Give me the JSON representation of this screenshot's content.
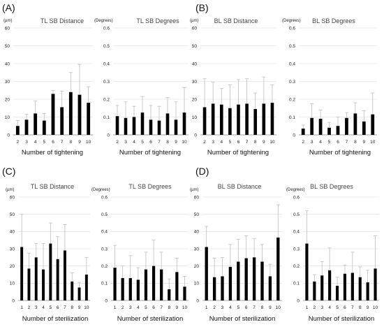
{
  "panel_letters": [
    "(A)",
    "(B)",
    "(C)",
    "(D)"
  ],
  "colors": {
    "bar": "#000000",
    "error_bar": "#bdbdbd",
    "grid": "#d9d9d9",
    "title": "#444444"
  },
  "chart_data": [
    {
      "type": "bar",
      "title": "TL SB Distance",
      "unit": "(µm)",
      "xlabel": "Number of tightening",
      "categories": [
        "2",
        "3",
        "4",
        "5",
        "6",
        "7",
        "8",
        "9",
        "10"
      ],
      "values": [
        5,
        8.5,
        12,
        8,
        23,
        15.5,
        24,
        22.5,
        18
      ],
      "errors": [
        3,
        3,
        7,
        4,
        2,
        9,
        11,
        17,
        9
      ],
      "ylim": [
        0,
        60
      ],
      "yticks": [
        0,
        10,
        20,
        30,
        40,
        50,
        60
      ],
      "grid": true
    },
    {
      "type": "bar",
      "title": "TL SB Degrees",
      "unit": "(Degrees)",
      "xlabel": "Number of tightening",
      "categories": [
        "2",
        "3",
        "4",
        "5",
        "6",
        "7",
        "8",
        "9",
        "10"
      ],
      "values": [
        0.105,
        0.095,
        0.1,
        0.125,
        0.085,
        0.08,
        0.12,
        0.085,
        0.125
      ],
      "errors": [
        0.06,
        0.09,
        0.06,
        0.09,
        0.08,
        0.08,
        0.09,
        0.1,
        0.14
      ],
      "ylim": [
        0,
        0.6
      ],
      "yticks": [
        0,
        0.1,
        0.2,
        0.3,
        0.4,
        0.5,
        0.6
      ],
      "grid": true
    },
    {
      "type": "bar",
      "title": "BL SB Distance",
      "unit": "(µm)",
      "xlabel": "Number of tightening",
      "categories": [
        "2",
        "3",
        "4",
        "5",
        "6",
        "7",
        "8",
        "9",
        "10"
      ],
      "values": [
        15.5,
        17.5,
        17,
        15,
        17,
        17.5,
        14.5,
        17.5,
        18
      ],
      "errors": [
        16,
        12,
        9,
        13,
        14,
        14,
        9,
        15,
        10
      ],
      "ylim": [
        0,
        60
      ],
      "yticks": [
        0,
        10,
        20,
        30,
        40,
        50,
        60
      ],
      "grid": true
    },
    {
      "type": "bar",
      "title": "BL SB Degrees",
      "unit": "(Degrees)",
      "xlabel": "Number of tightening",
      "categories": [
        "2",
        "3",
        "4",
        "5",
        "6",
        "7",
        "8",
        "9",
        "10"
      ],
      "values": [
        0.035,
        0.095,
        0.09,
        0.04,
        0.05,
        0.095,
        0.12,
        0.075,
        0.115
      ],
      "errors": [
        0.02,
        0.08,
        0.05,
        0.03,
        0.05,
        0.03,
        0.06,
        0.06,
        0.12
      ],
      "ylim": [
        0,
        0.6
      ],
      "yticks": [
        0,
        0.1,
        0.2,
        0.3,
        0.4,
        0.5,
        0.6
      ],
      "grid": true
    },
    {
      "type": "bar",
      "title": "TL SB Distance",
      "unit": "(µm)",
      "xlabel": "Number of sterilization",
      "categories": [
        "1",
        "2",
        "3",
        "4",
        "5",
        "6",
        "7",
        "8",
        "9",
        "10"
      ],
      "values": [
        31,
        18.5,
        25,
        18,
        33,
        24,
        29,
        11,
        7.5,
        15
      ],
      "errors": [
        19,
        9,
        8,
        15,
        12,
        13,
        15,
        5,
        3,
        10
      ],
      "ylim": [
        0,
        60
      ],
      "yticks": [
        0,
        10,
        20,
        30,
        40,
        50,
        60
      ],
      "grid": true
    },
    {
      "type": "bar",
      "title": "TL SB Degrees",
      "unit": "(Degrees)",
      "xlabel": "Number of sterilization",
      "categories": [
        "1",
        "2",
        "3",
        "4",
        "5",
        "6",
        "7",
        "8",
        "9",
        "10"
      ],
      "values": [
        0.19,
        0.13,
        0.13,
        0.12,
        0.18,
        0.2,
        0.18,
        0.065,
        0.165,
        0.08
      ],
      "errors": [
        0.13,
        0.07,
        0.13,
        0.07,
        0.1,
        0.15,
        0.1,
        0.06,
        0.08,
        0.06
      ],
      "ylim": [
        0,
        0.6
      ],
      "yticks": [
        0,
        0.1,
        0.2,
        0.3,
        0.4,
        0.5,
        0.6
      ],
      "grid": true
    },
    {
      "type": "bar",
      "title": "BL SB Distance",
      "unit": "(µm)",
      "xlabel": "Number of sterilization",
      "categories": [
        "1",
        "2",
        "3",
        "4",
        "5",
        "6",
        "7",
        "8",
        "9",
        "10"
      ],
      "values": [
        31,
        13.5,
        14,
        19.5,
        22.5,
        24.5,
        25,
        22.5,
        14,
        36.5
      ],
      "errors": [
        12,
        11,
        11,
        13,
        13,
        13,
        11,
        10,
        7,
        19
      ],
      "ylim": [
        0,
        60
      ],
      "yticks": [
        0,
        10,
        20,
        30,
        40,
        50,
        60
      ],
      "grid": true
    },
    {
      "type": "bar",
      "title": "BL SB Degrees",
      "unit": "(Degrees)",
      "xlabel": "Number of sterilization",
      "categories": [
        "1",
        "2",
        "3",
        "4",
        "5",
        "6",
        "7",
        "8",
        "9",
        "10"
      ],
      "values": [
        0.33,
        0.11,
        0.145,
        0.175,
        0.085,
        0.155,
        0.16,
        0.135,
        0.105,
        0.185
      ],
      "errors": [
        0.19,
        0.04,
        0.08,
        0.13,
        0.05,
        0.05,
        0.12,
        0.06,
        0.07,
        0.19
      ],
      "ylim": [
        0,
        0.6
      ],
      "yticks": [
        0,
        0.1,
        0.2,
        0.3,
        0.4,
        0.5,
        0.6
      ],
      "grid": true
    }
  ]
}
